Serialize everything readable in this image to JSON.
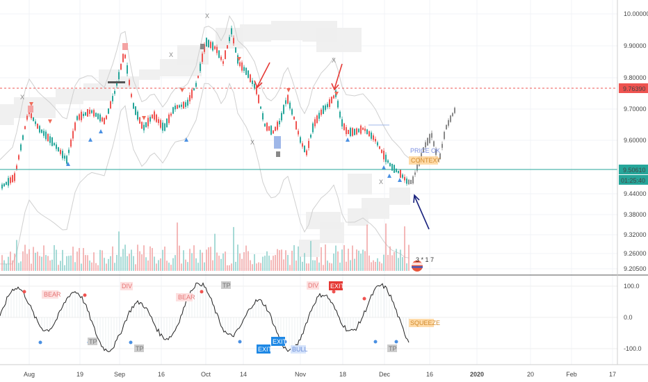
{
  "chart_data": {
    "type": "candlestick",
    "x_ticks": [
      "Aug",
      "19",
      "Sep",
      "16",
      "Oct",
      "14",
      "Nov",
      "18",
      "Dec",
      "16",
      "2020",
      "20",
      "Feb",
      "17"
    ],
    "price_axis": {
      "ticks": [
        "10.00000",
        "9.90000",
        "9.80000",
        "9.70000",
        "9.60000",
        "9.44000",
        "9.38000",
        "9.32000",
        "9.26000",
        "9.20500"
      ],
      "current_price": "9.50610",
      "countdown": "01:25:40",
      "level_price": "9.76390"
    },
    "oscillator_axis": {
      "ticks": [
        "100.0",
        "0.0",
        "-100.0"
      ]
    },
    "price_labels": [
      "PRICE OK",
      "CONTEXT"
    ],
    "oscillator_labels": {
      "bear_1": "BEAR",
      "bear_2": "BEAR",
      "div_1": "DIV",
      "div_2": "DIV",
      "exit_red": "EXIT",
      "exit_blue_1": "EXIT",
      "exit_blue_2": "EXIT",
      "bull": "BULL",
      "squeeze": "SQUEEZE",
      "tp_1": "TP",
      "tp_2": "TP",
      "tp_3": "TP",
      "tp_4": "TP"
    },
    "x_markers": [
      "X",
      "X",
      "X",
      "X",
      "X",
      "X"
    ],
    "badge_text": "3 * 1 7",
    "colors": {
      "up": "#26a69a",
      "down": "#ef5350",
      "level": "#ef5350",
      "current": "#26a69a",
      "arrow_red": "#e53935",
      "arrow_blue": "#1a237e",
      "oscillator": "#222222"
    },
    "icons": [
      "arrow-down-red",
      "arrow-down-red",
      "arrow-up-blue",
      "triangle-up",
      "triangle-down",
      "x-marker",
      "flag-badge"
    ]
  }
}
